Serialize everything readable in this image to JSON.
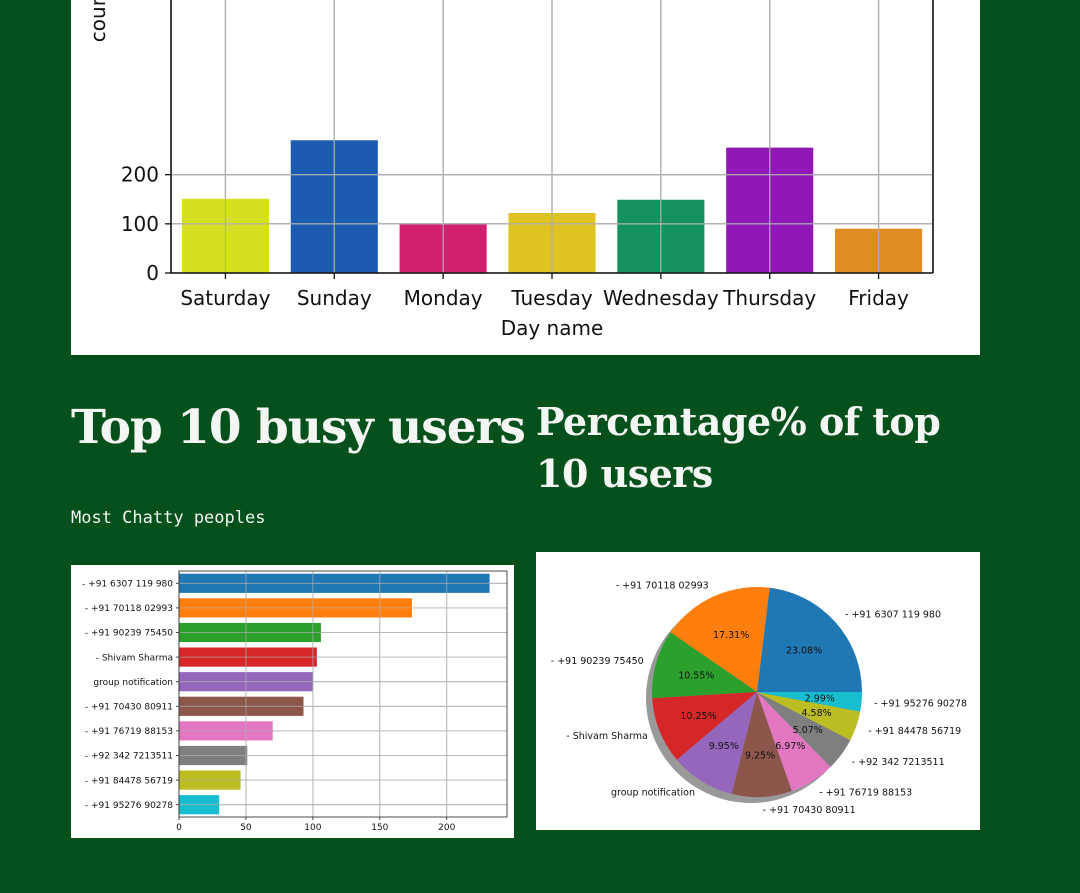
{
  "sections": {
    "busy_title": "Top 10 busy users",
    "busy_subtitle": "Most Chatty peoples",
    "pct_title": "Percentage% of top 10 users"
  },
  "chart_data": [
    {
      "type": "bar",
      "xlabel": "Day name",
      "ylabel": "count",
      "categories": [
        "Saturday",
        "Sunday",
        "Monday",
        "Tuesday",
        "Wednesday",
        "Thursday",
        "Friday"
      ],
      "values": [
        151,
        270,
        99,
        122,
        149,
        255,
        90
      ],
      "colors": [
        "#d6e021",
        "#1b5cb0",
        "#d21f70",
        "#dfc322",
        "#13925e",
        "#9018b7",
        "#dd8d22"
      ],
      "ylim": [
        0,
        240
      ],
      "yticks": [
        0,
        100,
        200
      ],
      "grid": true
    },
    {
      "type": "bar",
      "orientation": "horizontal",
      "categories": [
        "- +91 6307 119 980",
        "- +91 70118 02993",
        "- +91 90239 75450",
        "- Shivam Sharma",
        "group notification",
        "- +91 70430 80911",
        "- +91 76719 88153",
        "- +92 342 7213511",
        "- +91 84478 56719",
        "- +91 95276 90278"
      ],
      "values": [
        232,
        174,
        106,
        103,
        100,
        93,
        70,
        51,
        46,
        30
      ],
      "colors": [
        "#1f77b4",
        "#ff7f0e",
        "#2ca02c",
        "#d62728",
        "#9467bd",
        "#8c564b",
        "#e377c2",
        "#7f7f7f",
        "#bcbd22",
        "#17becf"
      ],
      "xlim": [
        0,
        245
      ],
      "xticks": [
        0,
        50,
        100,
        150,
        200
      ],
      "grid": true
    },
    {
      "type": "pie",
      "labels": [
        "- +91 6307 119 980",
        "- +91 70118 02993",
        "- +91 90239 75450",
        "- Shivam Sharma",
        "group notification",
        "- +91 70430 80911",
        "- +91 76719 88153",
        "- +92 342 7213511",
        "- +91 84478 56719",
        "- +91 95276 90278"
      ],
      "values": [
        23.08,
        17.31,
        10.55,
        10.25,
        9.95,
        9.25,
        6.97,
        5.07,
        4.58,
        2.99
      ],
      "value_labels": [
        "23.08%",
        "17.31%",
        "10.55%",
        "10.25%",
        "9.95%",
        "9.25%",
        "6.97%",
        "5.07%",
        "4.58%",
        "2.99%"
      ],
      "colors": [
        "#1f77b4",
        "#ff7f0e",
        "#2ca02c",
        "#d62728",
        "#9467bd",
        "#8c564b",
        "#e377c2",
        "#7f7f7f",
        "#bcbd22",
        "#17becf"
      ],
      "shadow": true
    }
  ]
}
